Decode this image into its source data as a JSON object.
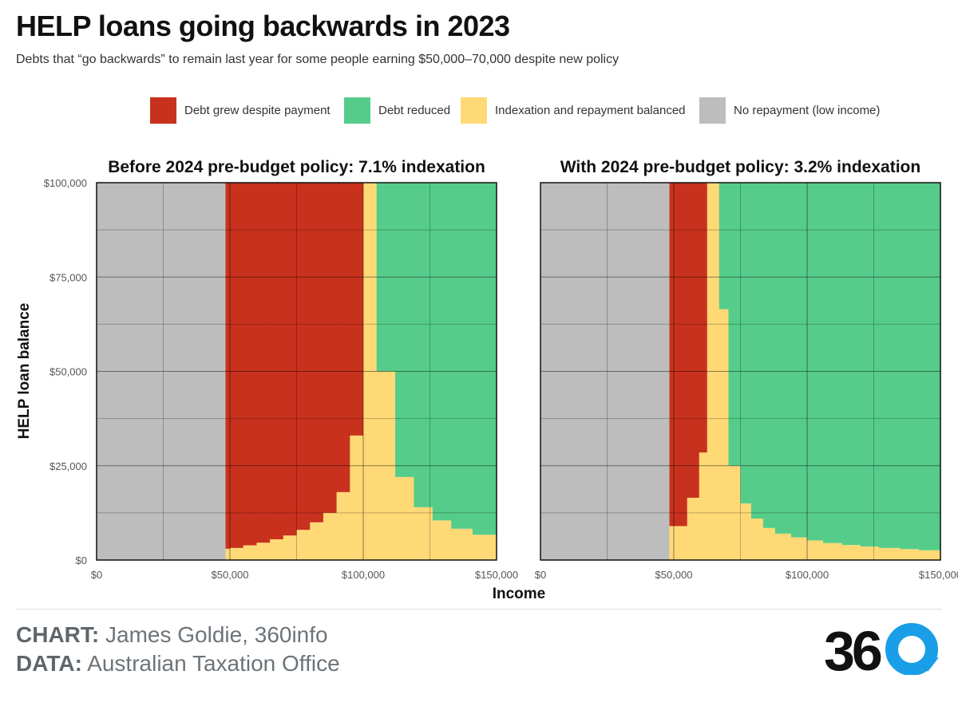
{
  "header": {
    "title": "HELP loans going backwards in 2023",
    "subtitle": "Debts that “go backwards” to remain last year for some people earning $50,000–70,000 despite new policy"
  },
  "legend": {
    "items": [
      {
        "label": "Debt grew despite payment",
        "color": "#c8311d"
      },
      {
        "label": "Debt reduced",
        "color": "#56cc8a"
      },
      {
        "label": "Indexation and repayment balanced",
        "color": "#fed976"
      },
      {
        "label": "No repayment (low income)",
        "color": "#bdbdbd"
      }
    ]
  },
  "chart_data": {
    "type": "heatmap",
    "xlabel": "Income",
    "ylabel": "HELP loan balance",
    "xlim": [
      0,
      150000
    ],
    "ylim": [
      0,
      100000
    ],
    "x_ticks": [
      0,
      50000,
      100000,
      150000
    ],
    "x_tick_labels": [
      "$0",
      "$50,000",
      "$100,000",
      "$150,000"
    ],
    "y_ticks": [
      0,
      25000,
      50000,
      75000,
      100000
    ],
    "y_tick_labels": [
      "$0",
      "$25,000",
      "$50,000",
      "$75,000",
      "$100,000"
    ],
    "grid": true,
    "panels": [
      {
        "title": "Before 2024 pre-budget policy: 7.1% indexation",
        "no_repayment_below": 48361,
        "bands": [
          {
            "x0": 48361,
            "x1": 50000,
            "yellow_top": 3000,
            "green_from": 100000
          },
          {
            "x0": 50000,
            "x1": 55000,
            "yellow_top": 3200,
            "green_from": 100000
          },
          {
            "x0": 55000,
            "x1": 60000,
            "yellow_top": 3900,
            "green_from": 100000
          },
          {
            "x0": 60000,
            "x1": 65000,
            "yellow_top": 4600,
            "green_from": 100000
          },
          {
            "x0": 65000,
            "x1": 70000,
            "yellow_top": 5500,
            "green_from": 100000
          },
          {
            "x0": 70000,
            "x1": 75000,
            "yellow_top": 6500,
            "green_from": 100000
          },
          {
            "x0": 75000,
            "x1": 80000,
            "yellow_top": 8000,
            "green_from": 100000
          },
          {
            "x0": 80000,
            "x1": 85000,
            "yellow_top": 10000,
            "green_from": 100000
          },
          {
            "x0": 85000,
            "x1": 90000,
            "yellow_top": 12500,
            "green_from": 100000
          },
          {
            "x0": 90000,
            "x1": 95000,
            "yellow_top": 18000,
            "green_from": 100000
          },
          {
            "x0": 95000,
            "x1": 100000,
            "yellow_top": 33000,
            "green_from": 100000
          },
          {
            "x0": 100000,
            "x1": 105000,
            "yellow_top": 100000,
            "green_from": 100000
          },
          {
            "x0": 105000,
            "x1": 112000,
            "yellow_top": 50000,
            "green_from": 50000
          },
          {
            "x0": 112000,
            "x1": 119000,
            "yellow_top": 22000,
            "green_from": 22000
          },
          {
            "x0": 119000,
            "x1": 126000,
            "yellow_top": 14000,
            "green_from": 14000
          },
          {
            "x0": 126000,
            "x1": 133000,
            "yellow_top": 10500,
            "green_from": 10500
          },
          {
            "x0": 133000,
            "x1": 141000,
            "yellow_top": 8300,
            "green_from": 8300
          },
          {
            "x0": 141000,
            "x1": 150000,
            "yellow_top": 6700,
            "green_from": 6700
          }
        ]
      },
      {
        "title": "With 2024 pre-budget policy: 3.2% indexation",
        "no_repayment_below": 48361,
        "bands": [
          {
            "x0": 48361,
            "x1": 55000,
            "yellow_top": 9000,
            "green_from": 100000
          },
          {
            "x0": 55000,
            "x1": 59500,
            "yellow_top": 16500,
            "green_from": 100000
          },
          {
            "x0": 59500,
            "x1": 62500,
            "yellow_top": 28500,
            "green_from": 100000
          },
          {
            "x0": 62500,
            "x1": 67000,
            "yellow_top": 100000,
            "green_from": 100000
          },
          {
            "x0": 67000,
            "x1": 70500,
            "yellow_top": 66500,
            "green_from": 66500
          },
          {
            "x0": 70500,
            "x1": 75000,
            "yellow_top": 25000,
            "green_from": 25000
          },
          {
            "x0": 75000,
            "x1": 79000,
            "yellow_top": 15000,
            "green_from": 15000
          },
          {
            "x0": 79000,
            "x1": 83500,
            "yellow_top": 11000,
            "green_from": 11000
          },
          {
            "x0": 83500,
            "x1": 88000,
            "yellow_top": 8500,
            "green_from": 8500
          },
          {
            "x0": 88000,
            "x1": 94000,
            "yellow_top": 7000,
            "green_from": 7000
          },
          {
            "x0": 94000,
            "x1": 100000,
            "yellow_top": 6000,
            "green_from": 6000
          },
          {
            "x0": 100000,
            "x1": 106000,
            "yellow_top": 5200,
            "green_from": 5200
          },
          {
            "x0": 106000,
            "x1": 113000,
            "yellow_top": 4500,
            "green_from": 4500
          },
          {
            "x0": 113000,
            "x1": 120000,
            "yellow_top": 4000,
            "green_from": 4000
          },
          {
            "x0": 120000,
            "x1": 127000,
            "yellow_top": 3600,
            "green_from": 3600
          },
          {
            "x0": 127000,
            "x1": 135000,
            "yellow_top": 3200,
            "green_from": 3200
          },
          {
            "x0": 135000,
            "x1": 142000,
            "yellow_top": 2900,
            "green_from": 2900
          },
          {
            "x0": 142000,
            "x1": 150000,
            "yellow_top": 2600,
            "green_from": 2600
          }
        ]
      }
    ]
  },
  "footer": {
    "chart_label": "CHART:",
    "chart_credit": "James Goldie, 360info",
    "data_label": "DATA:",
    "data_credit": "Australian Taxation Office",
    "logo_text": "36"
  }
}
